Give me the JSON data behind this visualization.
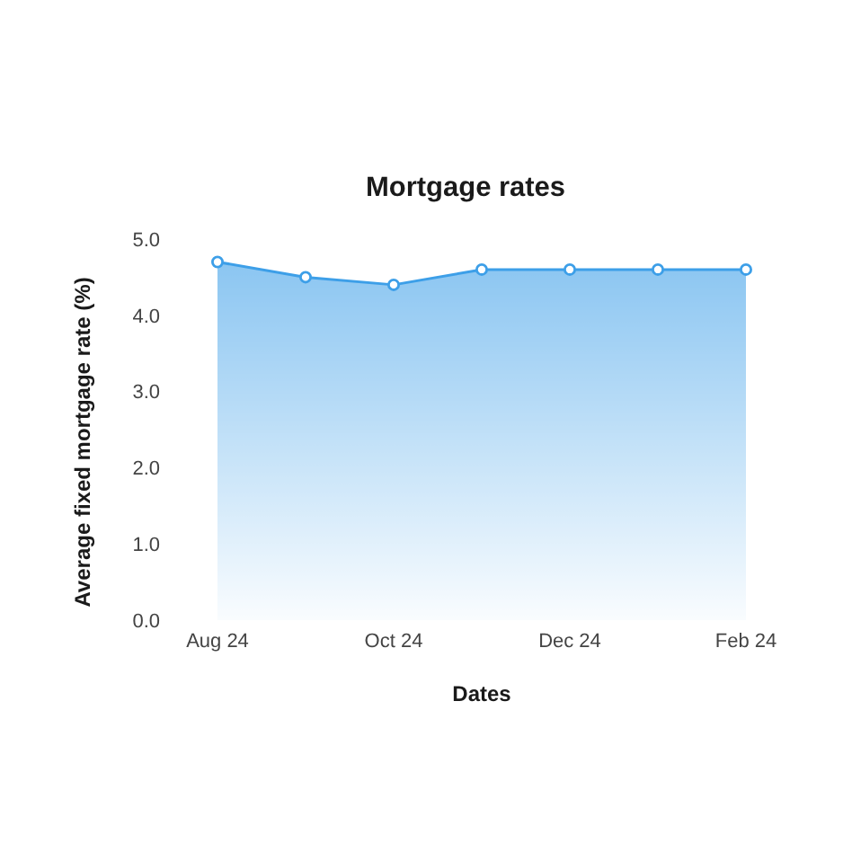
{
  "chart_data": {
    "type": "area",
    "title": "Mortgage rates",
    "xlabel": "Dates",
    "ylabel": "Average fixed mortgage rate (%)",
    "categories": [
      "Aug 24",
      null,
      "Oct 24",
      null,
      "Dec 24",
      null,
      "Feb 24"
    ],
    "values": [
      4.7,
      4.5,
      4.4,
      4.6,
      4.6,
      4.6,
      4.6
    ],
    "color": "#3d9fe8",
    "ylim": [
      0,
      5
    ],
    "yticks": [
      {
        "value": 0,
        "label": "0.0"
      },
      {
        "value": 1,
        "label": "1.0"
      },
      {
        "value": 2,
        "label": "2.0"
      },
      {
        "value": 3,
        "label": "3.0"
      },
      {
        "value": 4,
        "label": "4.0"
      },
      {
        "value": 5,
        "label": "5.0"
      }
    ],
    "marker": "circle"
  }
}
